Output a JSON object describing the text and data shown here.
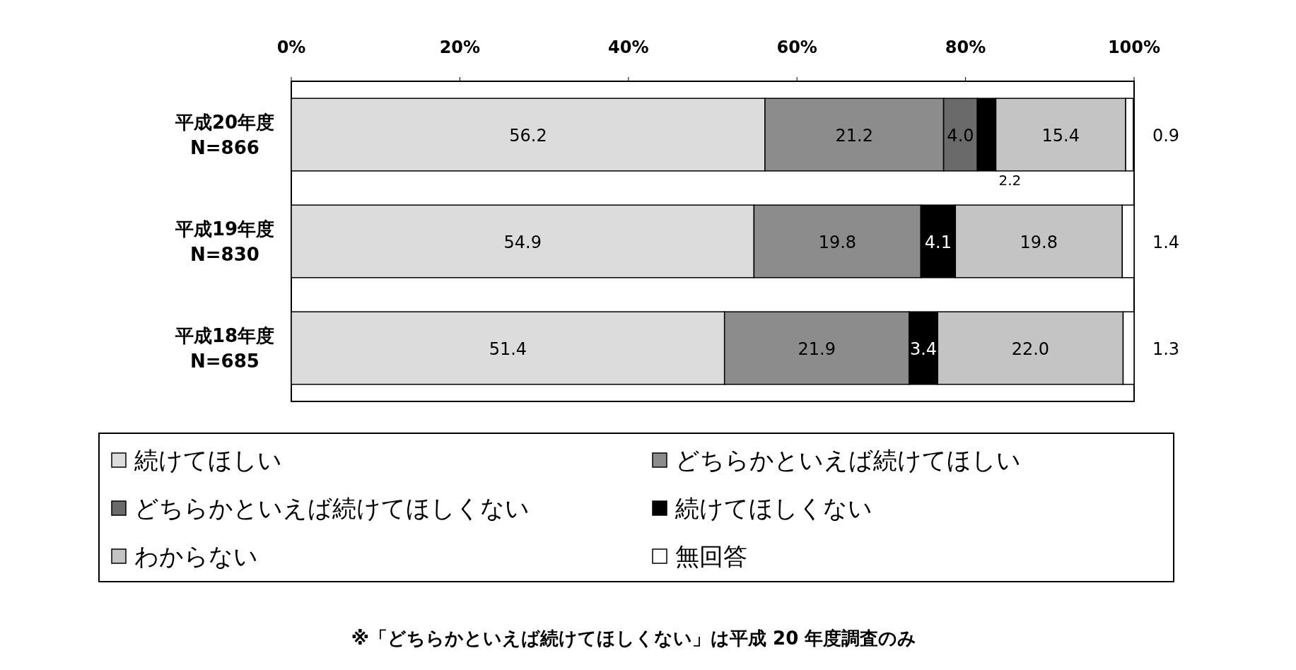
{
  "chart_data": {
    "type": "bar",
    "orientation": "horizontal",
    "stacked": true,
    "grid": false,
    "legend": "bottom",
    "categories": [
      "平成20年度\nN=866",
      "平成19年度\nN=830",
      "平成18年度\nN=685"
    ],
    "xlim": [
      0,
      100
    ],
    "xticks": [
      {
        "value": 0,
        "label": "0%"
      },
      {
        "value": 20,
        "label": "20%"
      },
      {
        "value": 40,
        "label": "40%"
      },
      {
        "value": 60,
        "label": "60%"
      },
      {
        "value": 80,
        "label": "80%"
      },
      {
        "value": 100,
        "label": "100%"
      }
    ],
    "series": [
      {
        "name": "続けてほしい",
        "color": "#dcdcdc",
        "values": [
          56.2,
          54.9,
          51.4
        ],
        "value_labels": [
          "56.2",
          "54.9",
          "51.4"
        ]
      },
      {
        "name": "どちらかといえば続けてほしい",
        "color": "#8c8c8c",
        "values": [
          21.2,
          19.8,
          21.9
        ],
        "value_labels": [
          "21.2",
          "19.8",
          "21.9"
        ]
      },
      {
        "name": "どちらかといえば続けてほしくない",
        "color": "#6a6a6a",
        "values": [
          4.0,
          null,
          null
        ],
        "value_labels": [
          "4.0",
          null,
          null
        ]
      },
      {
        "name": "続けてほしくない",
        "color": "#000000",
        "values": [
          2.2,
          4.1,
          3.4
        ],
        "value_labels": [
          "2.2",
          "4.1",
          "3.4"
        ]
      },
      {
        "name": "わからない",
        "color": "#c4c4c4",
        "values": [
          15.4,
          19.8,
          22.0
        ],
        "value_labels": [
          "15.4",
          "19.8",
          "22.0"
        ]
      },
      {
        "name": "無回答",
        "color": "#ffffff",
        "values": [
          0.9,
          1.4,
          1.3
        ],
        "value_labels": [
          "0.9",
          "1.4",
          "1.3"
        ]
      }
    ],
    "annotations": [
      "※「どちらかといえば続けてほしくない」は平成 20 年度調査のみ"
    ]
  }
}
